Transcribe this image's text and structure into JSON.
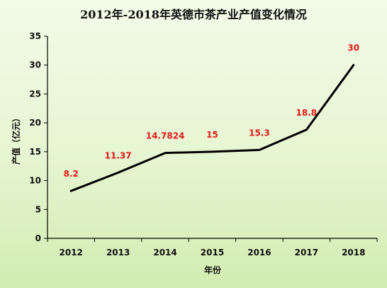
{
  "chart_data": {
    "type": "line",
    "title": "2012年-2018年英德市茶产业产值变化情况",
    "xlabel": "年份",
    "ylabel": "产值（亿元）",
    "categories": [
      "2012",
      "2013",
      "2014",
      "2015",
      "2016",
      "2017",
      "2018"
    ],
    "series": [
      {
        "values": [
          8.2,
          11.37,
          14.7824,
          15,
          15.3,
          18.8,
          30
        ]
      }
    ],
    "data_labels": [
      "8.2",
      "11.37",
      "14.7824",
      "15",
      "15.3",
      "18.8",
      "30"
    ],
    "ylim": [
      0,
      35
    ],
    "yticks": [
      "0",
      "5",
      "10",
      "15",
      "20",
      "25",
      "30",
      "35"
    ],
    "grid": false,
    "legend": "none",
    "colors": {
      "line": "#000000",
      "labels": "#e01b1b"
    }
  }
}
